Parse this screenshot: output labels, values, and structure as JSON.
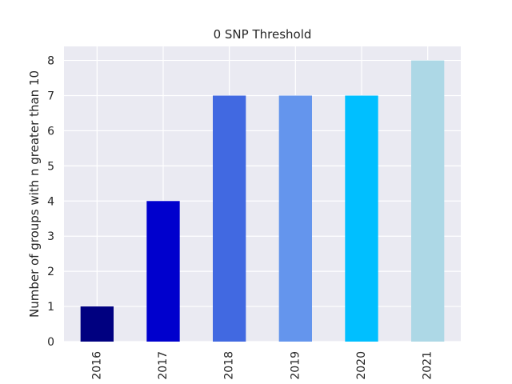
{
  "chart_data": {
    "type": "bar",
    "title": "0 SNP Threshold",
    "xlabel": "",
    "ylabel": "Number of groups with n greater than 10",
    "categories": [
      "2016",
      "2017",
      "2018",
      "2019",
      "2020",
      "2021"
    ],
    "values": [
      1,
      4,
      7,
      7,
      7,
      8
    ],
    "bar_colors": [
      "#000080",
      "#0000cd",
      "#4169e1",
      "#6495ed",
      "#00bfff",
      "#add8e6"
    ],
    "ylim": [
      0,
      8.4
    ],
    "yticks": [
      0,
      1,
      2,
      3,
      4,
      5,
      6,
      7,
      8
    ],
    "grid": true,
    "x_tick_rotation": "vertical",
    "background_color": "#eaeaf2",
    "grid_color": "#ffffff"
  }
}
